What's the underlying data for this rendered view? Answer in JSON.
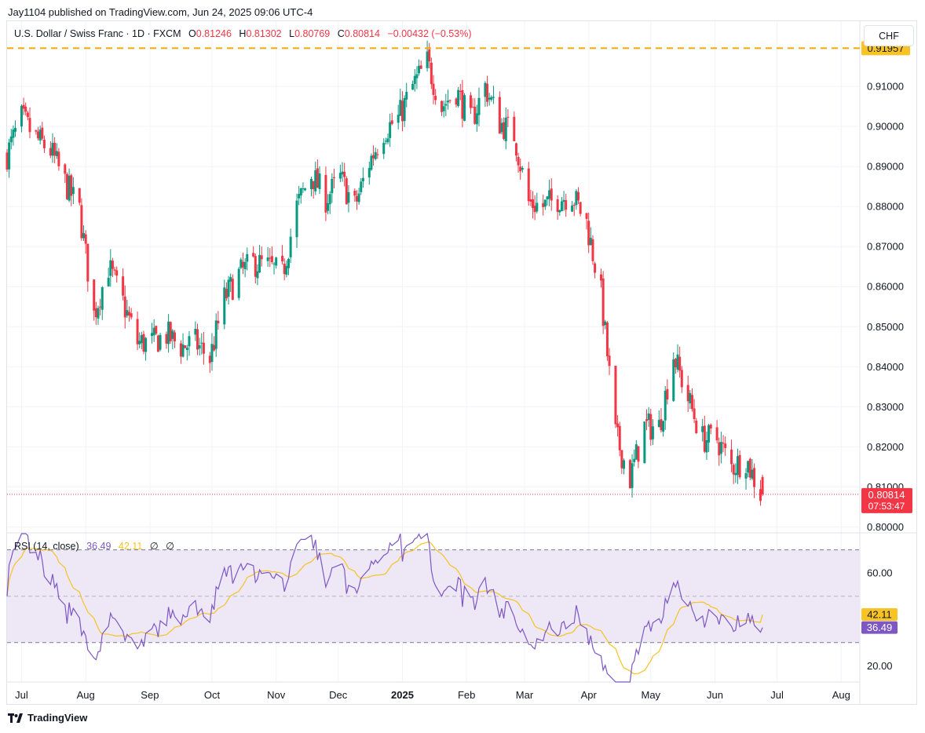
{
  "header": {
    "publisher": "Jay1104 published on TradingView.com, Jun 24, 2025 09:06 UTC-4"
  },
  "legend": {
    "symbol": "U.S. Dollar / Swiss Franc · 1D · FXCM",
    "o_label": "O",
    "o": "0.81246",
    "h_label": "H",
    "h": "0.81302",
    "l_label": "L",
    "l": "0.80769",
    "c_label": "C",
    "c": "0.80814",
    "change": "−0.00432 (−0.53%)"
  },
  "currency_button": "CHF",
  "rsi_legend": {
    "name": "RSI (14, close)",
    "rsi": "36.49",
    "ma": "42.11",
    "n1": "∅",
    "n2": "∅"
  },
  "footer": {
    "brand": "TradingView"
  },
  "colors": {
    "up": "#089981",
    "down": "#f23645",
    "rsi": "#7e57c2",
    "rsi_ma": "#f7c325",
    "level": "#f7a600",
    "band": "#ede7f6"
  },
  "chart_data": [
    {
      "type": "candlestick",
      "symbol": "USDCHF",
      "interval": "1D",
      "y_ticks": [
        "0.91000",
        "0.90000",
        "0.89000",
        "0.88000",
        "0.87000",
        "0.86000",
        "0.85000",
        "0.84000",
        "0.83000",
        "0.82000",
        "0.81000",
        "0.80000"
      ],
      "ylim": [
        0.7985,
        0.9263
      ],
      "x_ticks": [
        "Jul",
        "Aug",
        "Sep",
        "Oct",
        "Nov",
        "Dec",
        "2025",
        "Feb",
        "Mar",
        "Apr",
        "May",
        "Jun",
        "Jul",
        "Aug"
      ],
      "level_line": {
        "value": 0.91957,
        "label": "0.91957"
      },
      "last_price": {
        "value": 0.80814,
        "label": "0.80814",
        "countdown": "07:53:47"
      },
      "anchors": [
        [
          "2024-06-24",
          0.893
        ],
        [
          "2024-07-01",
          0.902
        ],
        [
          "2024-07-08",
          0.897
        ],
        [
          "2024-07-15",
          0.894
        ],
        [
          "2024-07-22",
          0.886
        ],
        [
          "2024-07-29",
          0.879
        ],
        [
          "2024-08-05",
          0.853
        ],
        [
          "2024-08-12",
          0.865
        ],
        [
          "2024-08-19",
          0.856
        ],
        [
          "2024-08-26",
          0.846
        ],
        [
          "2024-09-02",
          0.846
        ],
        [
          "2024-09-09",
          0.848
        ],
        [
          "2024-09-16",
          0.845
        ],
        [
          "2024-09-23",
          0.846
        ],
        [
          "2024-09-30",
          0.842
        ],
        [
          "2024-10-07",
          0.857
        ],
        [
          "2024-10-14",
          0.863
        ],
        [
          "2024-10-21",
          0.866
        ],
        [
          "2024-10-28",
          0.865
        ],
        [
          "2024-11-04",
          0.863
        ],
        [
          "2024-11-11",
          0.88
        ],
        [
          "2024-11-18",
          0.888
        ],
        [
          "2024-11-25",
          0.882
        ],
        [
          "2024-12-02",
          0.887
        ],
        [
          "2024-12-09",
          0.88
        ],
        [
          "2024-12-16",
          0.891
        ],
        [
          "2024-12-23",
          0.899
        ],
        [
          "2024-12-30",
          0.902
        ],
        [
          "2025-01-06",
          0.91
        ],
        [
          "2025-01-13",
          0.916
        ],
        [
          "2025-01-20",
          0.905
        ],
        [
          "2025-01-27",
          0.909
        ],
        [
          "2025-02-03",
          0.901
        ],
        [
          "2025-02-10",
          0.91
        ],
        [
          "2025-02-17",
          0.901
        ],
        [
          "2025-02-24",
          0.898
        ],
        [
          "2025-03-03",
          0.881
        ],
        [
          "2025-03-10",
          0.88
        ],
        [
          "2025-03-17",
          0.882
        ],
        [
          "2025-03-24",
          0.883
        ],
        [
          "2025-03-31",
          0.876
        ],
        [
          "2025-04-07",
          0.858
        ],
        [
          "2025-04-14",
          0.823
        ],
        [
          "2025-04-21",
          0.812
        ],
        [
          "2025-04-28",
          0.825
        ],
        [
          "2025-05-05",
          0.825
        ],
        [
          "2025-05-12",
          0.843
        ],
        [
          "2025-05-19",
          0.832
        ],
        [
          "2025-05-26",
          0.822
        ],
        [
          "2025-06-02",
          0.822
        ],
        [
          "2025-06-09",
          0.815
        ],
        [
          "2025-06-16",
          0.817
        ],
        [
          "2025-06-23",
          0.8082
        ],
        [
          "2025-06-24",
          0.80814
        ]
      ],
      "last_candle": {
        "date": "2025-06-24",
        "open": 0.81246,
        "high": 0.81302,
        "low": 0.80769,
        "close": 0.80814
      }
    },
    {
      "type": "line",
      "name": "RSI (14, close)",
      "y_ticks": [
        "60.00",
        "20.00"
      ],
      "ylim": [
        13,
        77
      ],
      "bands": [
        30,
        50,
        70
      ],
      "series": [
        {
          "name": "RSI",
          "value_label": "36.49",
          "last": 36.49
        },
        {
          "name": "RSI-based MA",
          "value_label": "42.11",
          "last": 42.11
        }
      ]
    }
  ]
}
